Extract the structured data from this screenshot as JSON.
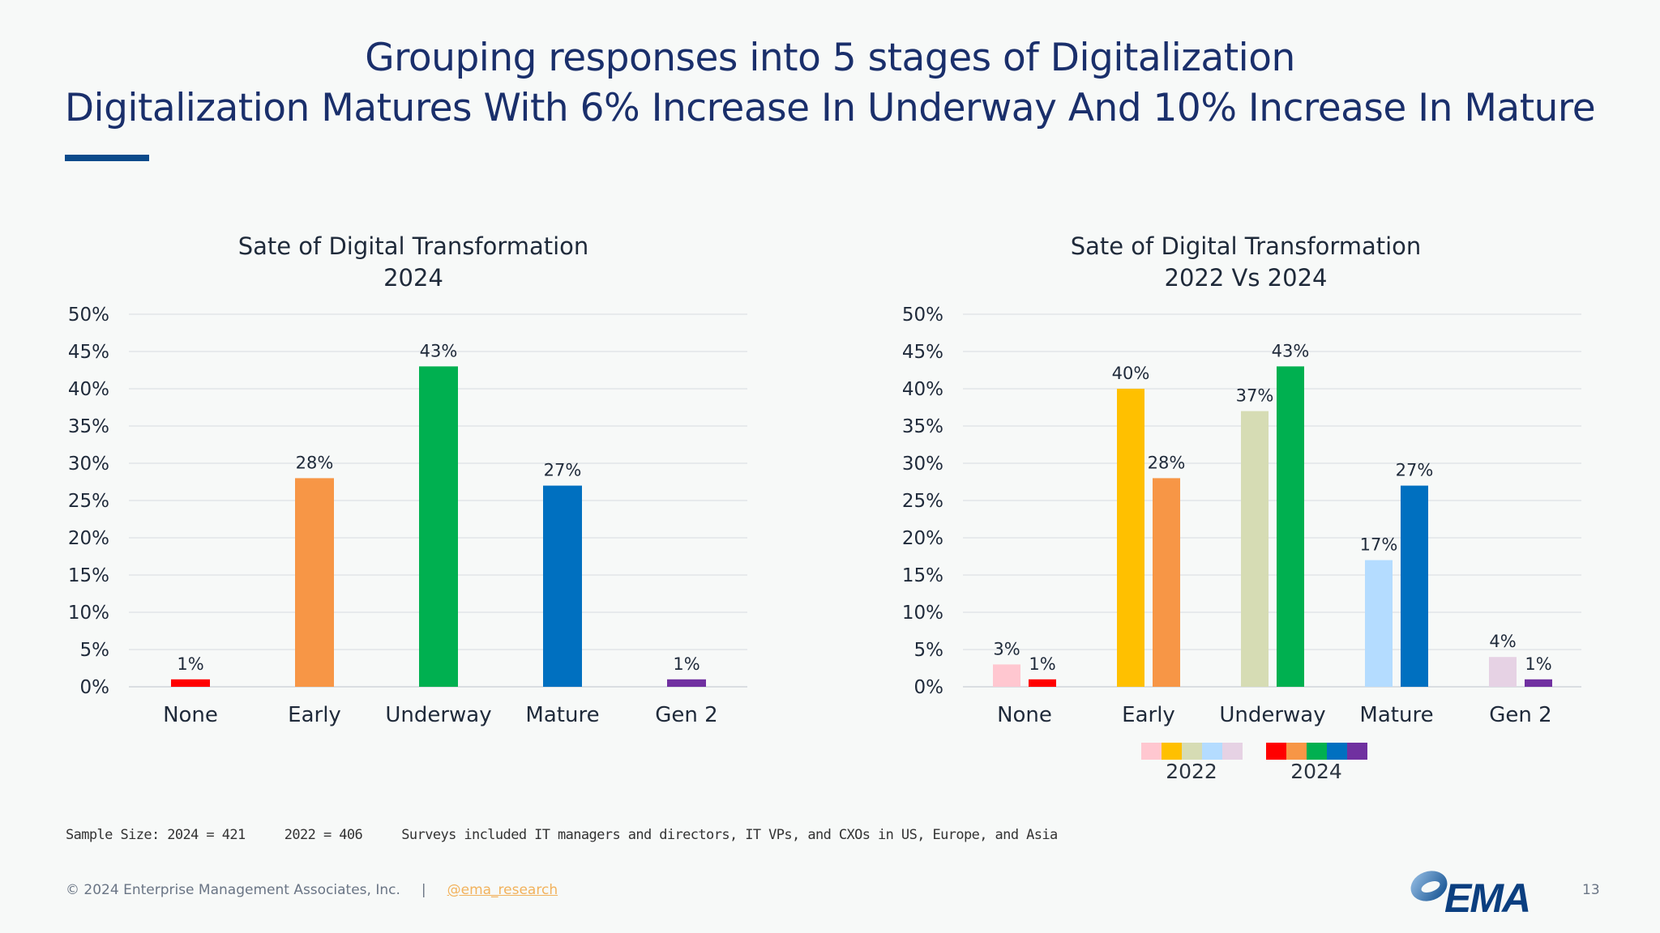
{
  "header": {
    "title_line1": "Grouping responses into 5 stages of Digitalization",
    "title_line2": "Digitalization Matures With 6% Increase In Underway And 10% Increase In Mature"
  },
  "chart_data": [
    {
      "type": "bar",
      "title": "Sate of Digital Transformation",
      "subtitle": "2024",
      "categories": [
        "None",
        "Early",
        "Underway",
        "Mature",
        "Gen 2"
      ],
      "values": [
        1,
        28,
        43,
        27,
        1
      ],
      "colors": [
        "#ff0000",
        "#f79646",
        "#00b050",
        "#0070c0",
        "#7030a0"
      ],
      "ylim": [
        0,
        50
      ],
      "yticks": [
        "0%",
        "5%",
        "10%",
        "15%",
        "20%",
        "25%",
        "30%",
        "35%",
        "40%",
        "45%",
        "50%"
      ],
      "data_labels": [
        "1%",
        "28%",
        "43%",
        "27%",
        "1%"
      ],
      "grid": true
    },
    {
      "type": "bar",
      "title": "Sate of Digital Transformation",
      "subtitle": "2022 Vs 2024",
      "categories": [
        "None",
        "Early",
        "Underway",
        "Mature",
        "Gen 2"
      ],
      "series": [
        {
          "name": "2022",
          "values": [
            3,
            40,
            37,
            17,
            4
          ],
          "data_labels": [
            "3%",
            "40%",
            "37%",
            "17%",
            "4%"
          ],
          "colors": [
            "#ffc7d0",
            "#ffc000",
            "#d6dcb4",
            "#b4dcff",
            "#e6d2e4"
          ]
        },
        {
          "name": "2024",
          "values": [
            1,
            28,
            43,
            27,
            1
          ],
          "data_labels": [
            "1%",
            "28%",
            "43%",
            "27%",
            "1%"
          ],
          "colors": [
            "#ff0000",
            "#f79646",
            "#00b050",
            "#0070c0",
            "#7030a0"
          ]
        }
      ],
      "ylim": [
        0,
        50
      ],
      "yticks": [
        "0%",
        "5%",
        "10%",
        "15%",
        "20%",
        "25%",
        "30%",
        "35%",
        "40%",
        "45%",
        "50%"
      ],
      "legend": "bottom",
      "grid": true
    }
  ],
  "footnote": "Sample Size: 2024 = 421     2022 = 406     Surveys included IT managers and directors, IT VPs, and CXOs in US, Europe, and Asia",
  "footer": {
    "copyright": "© 2024 Enterprise Management Associates, Inc.",
    "separator": "|",
    "handle": "@ema_research",
    "page_number": "13",
    "logo_text": "EMA"
  }
}
